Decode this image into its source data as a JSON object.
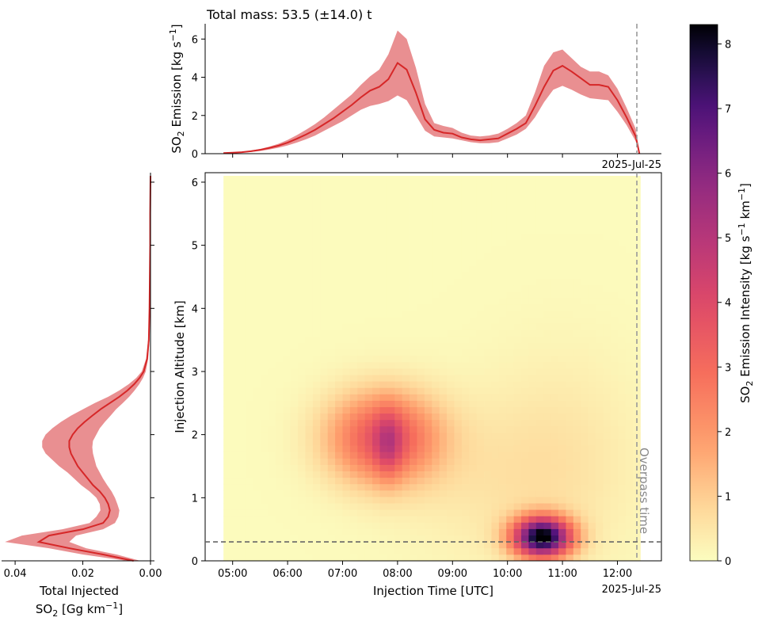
{
  "chart_data": [
    {
      "type": "area",
      "title": "Total mass: 53.5 (±14.0) t",
      "xlabel": "",
      "ylabel_main": "SO",
      "ylabel_sub": "2",
      "ylabel_rest": " Emission [kg s",
      "ylabel_sup": "−1",
      "ylabel_end": "]",
      "ylim": [
        0,
        6.8
      ],
      "yticks": [
        "0",
        "2",
        "4",
        "6"
      ],
      "date_label": "2025-Jul-25",
      "x": [
        "04:50",
        "05:00",
        "05:10",
        "05:20",
        "05:30",
        "05:40",
        "05:50",
        "06:00",
        "06:10",
        "06:20",
        "06:30",
        "06:40",
        "06:50",
        "07:00",
        "07:10",
        "07:20",
        "07:30",
        "07:40",
        "07:50",
        "08:00",
        "08:10",
        "08:20",
        "08:30",
        "08:40",
        "08:50",
        "09:00",
        "09:10",
        "09:20",
        "09:30",
        "09:40",
        "09:50",
        "10:00",
        "10:10",
        "10:20",
        "10:30",
        "10:40",
        "10:50",
        "11:00",
        "11:10",
        "11:20",
        "11:30",
        "11:40",
        "11:50",
        "12:00",
        "12:10",
        "12:20",
        "12:24"
      ],
      "series": [
        {
          "values": [
            0.03,
            0.05,
            0.08,
            0.13,
            0.2,
            0.3,
            0.42,
            0.58,
            0.78,
            1.0,
            1.25,
            1.55,
            1.85,
            2.2,
            2.55,
            2.95,
            3.3,
            3.5,
            3.9,
            4.75,
            4.4,
            3.2,
            1.8,
            1.25,
            1.1,
            1.05,
            0.85,
            0.75,
            0.7,
            0.75,
            0.8,
            1.05,
            1.3,
            1.6,
            2.5,
            3.5,
            4.35,
            4.6,
            4.3,
            3.95,
            3.6,
            3.6,
            3.5,
            2.8,
            1.9,
            0.9,
            0.0
          ]
        }
      ],
      "band_upper": [
        0.05,
        0.07,
        0.1,
        0.16,
        0.25,
        0.37,
        0.52,
        0.72,
        0.97,
        1.25,
        1.55,
        1.9,
        2.3,
        2.7,
        3.1,
        3.6,
        4.05,
        4.4,
        5.2,
        6.45,
        6.0,
        4.5,
        2.6,
        1.6,
        1.45,
        1.35,
        1.1,
        0.95,
        0.9,
        0.95,
        1.05,
        1.3,
        1.6,
        2.0,
        3.2,
        4.6,
        5.3,
        5.45,
        5.0,
        4.55,
        4.3,
        4.3,
        4.1,
        3.4,
        2.4,
        1.3,
        0.0
      ],
      "band_lower": [
        0.01,
        0.03,
        0.05,
        0.09,
        0.14,
        0.22,
        0.31,
        0.43,
        0.58,
        0.75,
        0.95,
        1.2,
        1.45,
        1.7,
        2.0,
        2.3,
        2.5,
        2.6,
        2.75,
        3.05,
        2.8,
        2.0,
        1.2,
        0.9,
        0.85,
        0.8,
        0.7,
        0.6,
        0.55,
        0.55,
        0.6,
        0.8,
        1.0,
        1.3,
        1.9,
        2.7,
        3.35,
        3.55,
        3.35,
        3.1,
        2.9,
        2.85,
        2.8,
        2.2,
        1.5,
        0.65,
        0.0
      ],
      "vline": "12:24",
      "colors": {
        "line": "#d62728",
        "band": "#e8898b"
      }
    },
    {
      "type": "heatmap",
      "xlabel": "Injection Time [UTC]",
      "ylabel": "Injection Altitude [km]",
      "xlim": [
        "04:30",
        "12:48"
      ],
      "ylim": [
        0,
        6.15
      ],
      "xticks": [
        "05:00",
        "06:00",
        "07:00",
        "08:00",
        "09:00",
        "10:00",
        "11:00",
        "12:00"
      ],
      "yticks": [
        "0",
        "1",
        "2",
        "3",
        "4",
        "5",
        "6"
      ],
      "date_label": "2025-Jul-25",
      "x_range": [
        "04:50",
        "12:25"
      ],
      "y_range": [
        0,
        6.1
      ],
      "blobs": [
        {
          "t": "07:45",
          "alt": 1.95,
          "sigma_t_min": 42,
          "sigma_alt_km": 0.5,
          "peak": 3.6
        },
        {
          "t": "07:50",
          "alt": 1.85,
          "sigma_t_min": 10,
          "sigma_alt_km": 0.38,
          "peak": 1.5
        },
        {
          "t": "10:38",
          "alt": 0.38,
          "sigma_t_min": 22,
          "sigma_alt_km": 0.22,
          "peak": 8.3
        },
        {
          "t": "11:00",
          "alt": 1.6,
          "sigma_t_min": 60,
          "sigma_alt_km": 1.2,
          "peak": 0.45
        },
        {
          "t": "09:30",
          "alt": 1.3,
          "sigma_t_min": 70,
          "sigma_alt_km": 0.9,
          "peak": 0.35
        }
      ],
      "hline_alt": 0.3,
      "vline": "12:24",
      "vline_label": "Overpass time"
    },
    {
      "type": "line",
      "xlabel_line1": "Total Injected",
      "xlabel_line2_main": "SO",
      "xlabel_line2_sub": "2",
      "xlabel_line2_rest": " [Gg km",
      "xlabel_line2_sup": "−1",
      "xlabel_line2_end": "]",
      "xlim": [
        0.044,
        0.0
      ],
      "xticks": [
        "0.04",
        "0.02",
        "0.00"
      ],
      "altitudes": [
        0.0,
        0.1,
        0.2,
        0.3,
        0.4,
        0.5,
        0.6,
        0.7,
        0.8,
        0.9,
        1.0,
        1.1,
        1.2,
        1.3,
        1.4,
        1.5,
        1.6,
        1.7,
        1.8,
        1.9,
        2.0,
        2.1,
        2.2,
        2.3,
        2.4,
        2.5,
        2.6,
        2.7,
        2.8,
        2.9,
        3.0,
        3.2,
        3.5,
        4.0,
        4.5,
        5.0,
        5.5,
        6.1
      ],
      "values": [
        0.005,
        0.014,
        0.024,
        0.033,
        0.03,
        0.02,
        0.014,
        0.0125,
        0.012,
        0.0125,
        0.0135,
        0.015,
        0.017,
        0.0185,
        0.02,
        0.0215,
        0.0225,
        0.0235,
        0.024,
        0.024,
        0.023,
        0.0215,
        0.0195,
        0.0172,
        0.0148,
        0.012,
        0.0092,
        0.0068,
        0.0048,
        0.0032,
        0.002,
        0.001,
        0.0005,
        0.0003,
        0.0002,
        0.0001,
        0.0001,
        0.0
      ],
      "upper": [
        0.007,
        0.02,
        0.03,
        0.043,
        0.038,
        0.026,
        0.018,
        0.016,
        0.0148,
        0.015,
        0.016,
        0.018,
        0.0205,
        0.0225,
        0.0245,
        0.027,
        0.029,
        0.031,
        0.032,
        0.032,
        0.031,
        0.029,
        0.0265,
        0.0235,
        0.02,
        0.0165,
        0.0125,
        0.0092,
        0.0064,
        0.0042,
        0.0026,
        0.0013,
        0.0007,
        0.0004,
        0.0003,
        0.0002,
        0.0001,
        0.0
      ],
      "lower": [
        0.003,
        0.01,
        0.019,
        0.024,
        0.022,
        0.014,
        0.0105,
        0.0095,
        0.0092,
        0.0098,
        0.0105,
        0.0115,
        0.0128,
        0.014,
        0.015,
        0.016,
        0.0165,
        0.017,
        0.0172,
        0.017,
        0.016,
        0.015,
        0.0135,
        0.0118,
        0.0102,
        0.0082,
        0.0063,
        0.0047,
        0.0033,
        0.0022,
        0.0014,
        0.0007,
        0.0003,
        0.0002,
        0.0001,
        0.0001,
        0.0,
        0.0
      ],
      "colors": {
        "line": "#d62728",
        "band": "#e8898b"
      }
    },
    {
      "type": "colorbar",
      "label_main": "SO",
      "label_sub": "2",
      "label_rest": " Emission Intensity [kg s",
      "label_sup": "−1",
      "label_mid": " km",
      "label_sup2": "−1",
      "label_end": "]",
      "range": [
        0,
        8.3
      ],
      "ticks": [
        "0",
        "1",
        "2",
        "3",
        "4",
        "5",
        "6",
        "7",
        "8"
      ],
      "colormap": "magma_r"
    }
  ]
}
